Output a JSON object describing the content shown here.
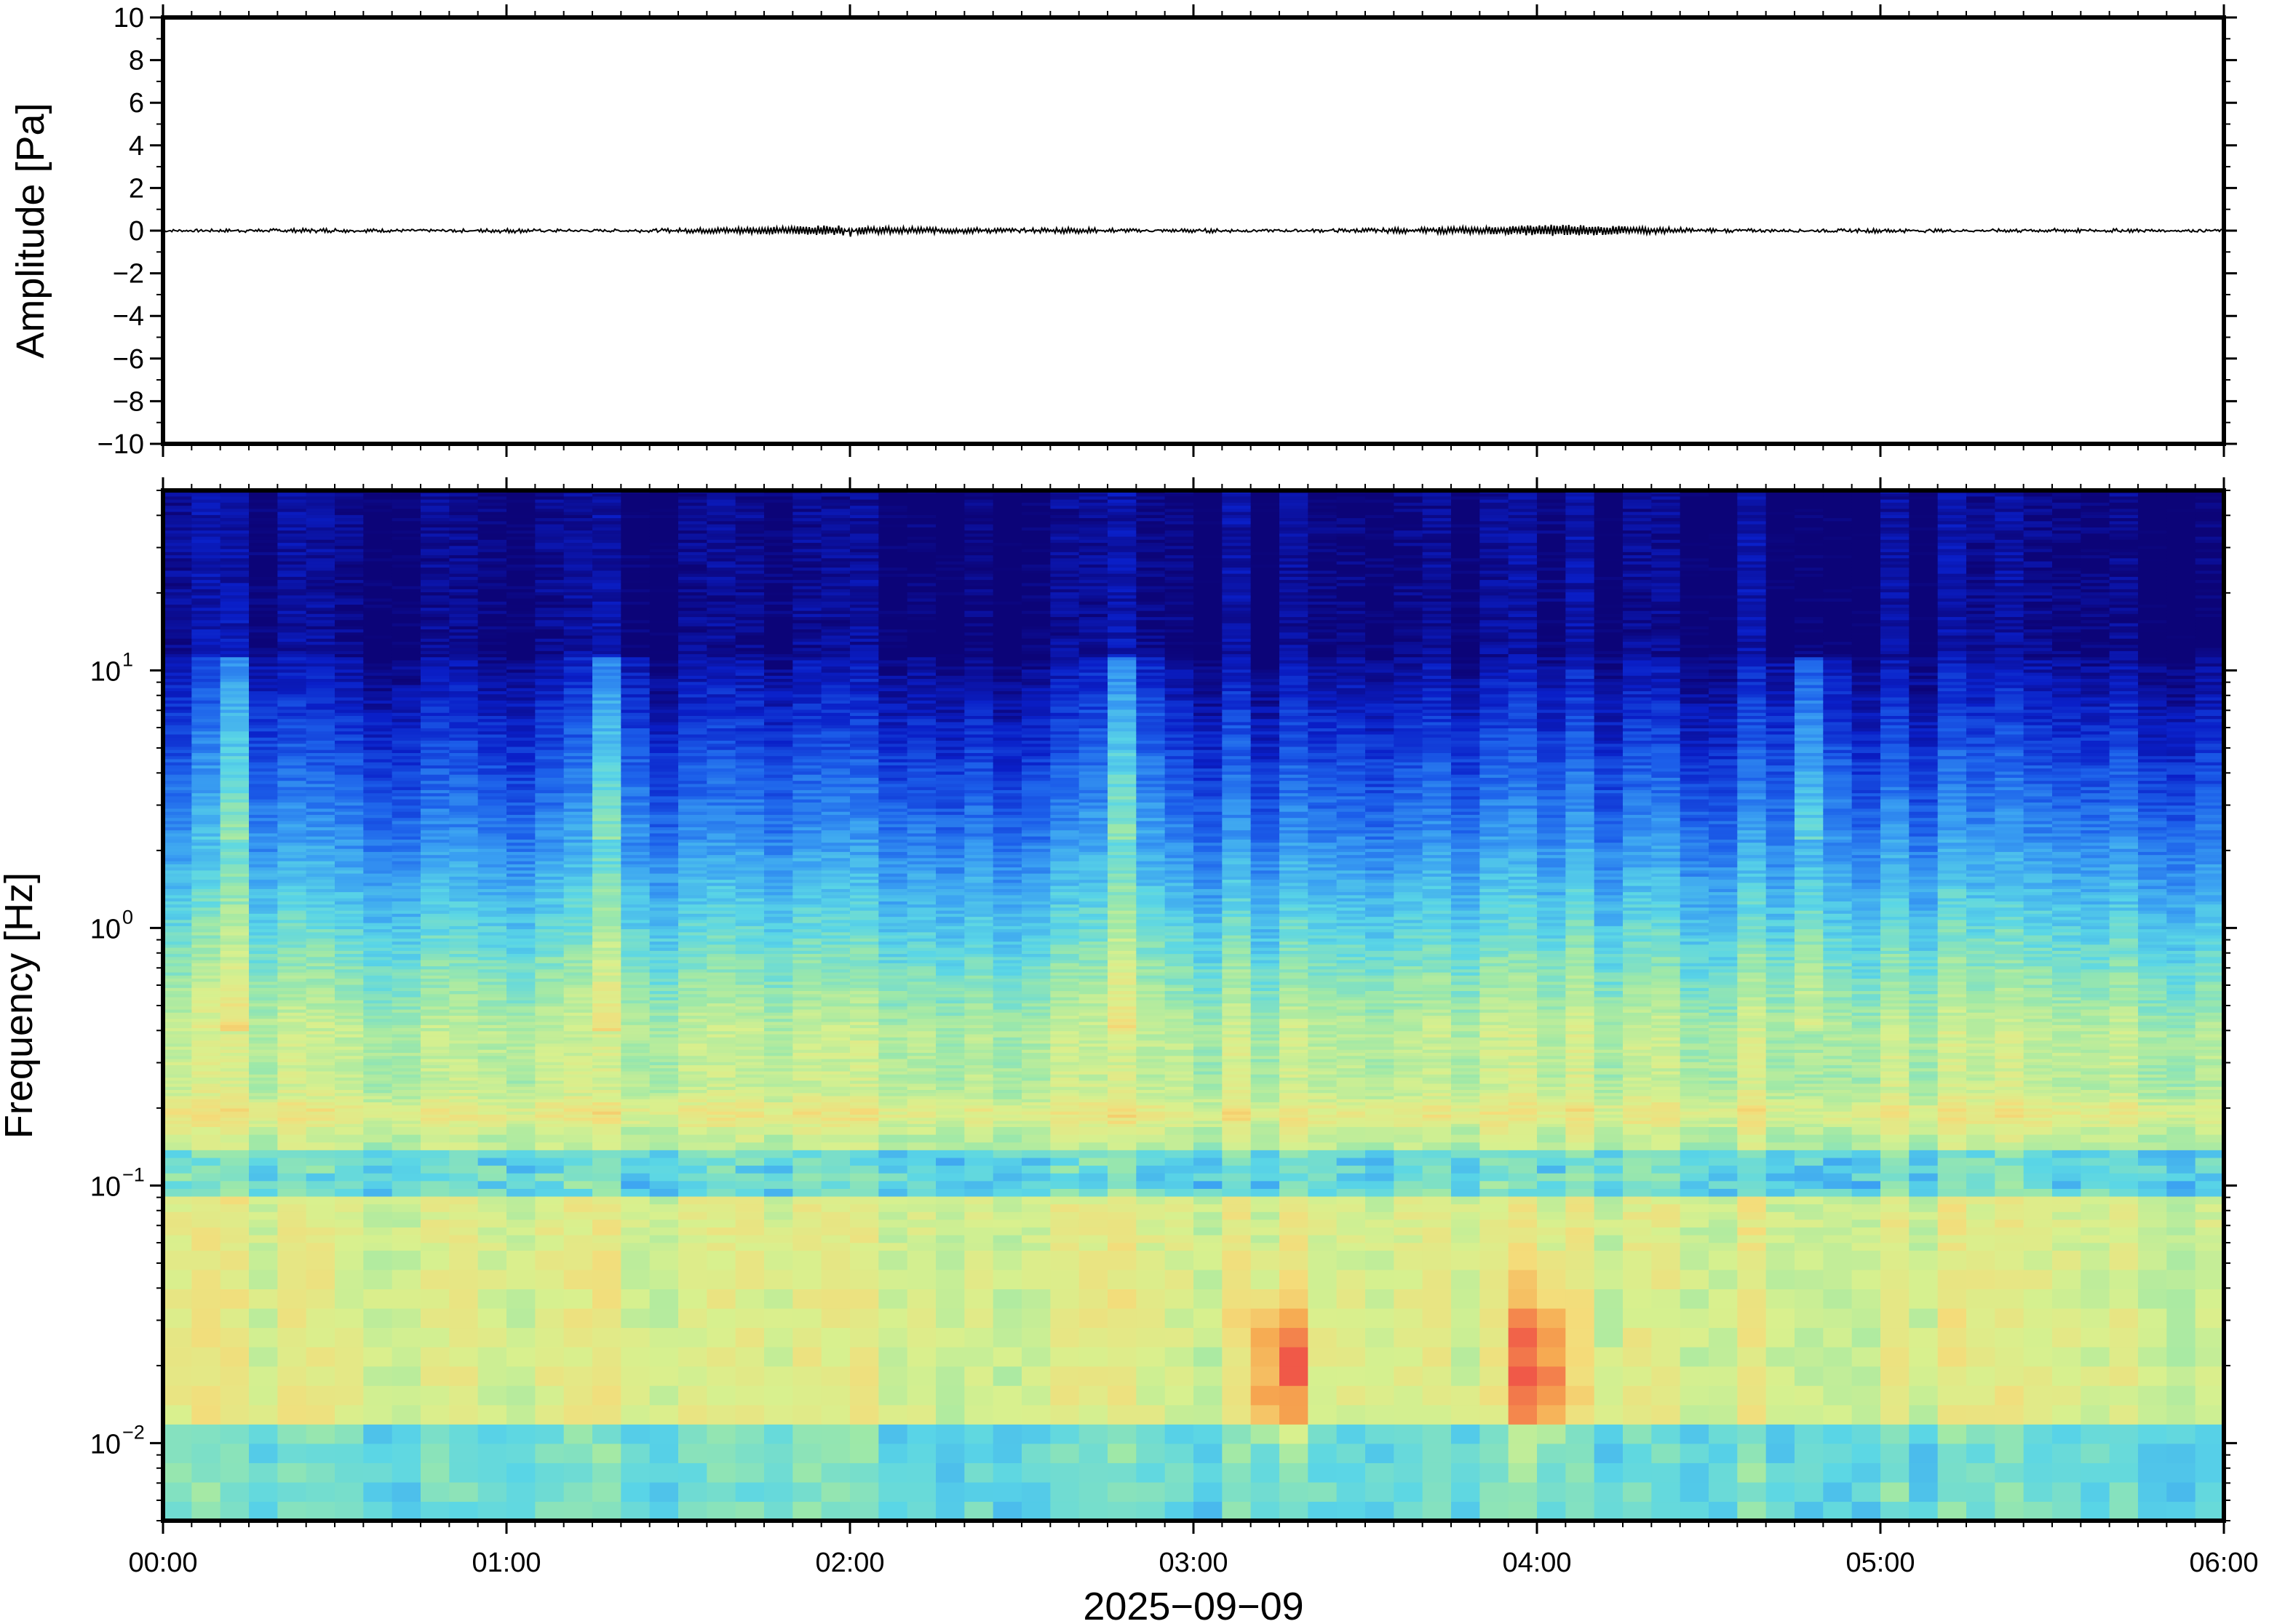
{
  "chart_data": [
    {
      "type": "line",
      "ylabel": "Amplitude [Pa]",
      "ylim": [
        -10,
        10
      ],
      "ytick_labels": [
        "10",
        "8",
        "6",
        "4",
        "2",
        "0",
        "−2",
        "−4",
        "−6",
        "−8",
        "−10"
      ],
      "yticks": [
        10,
        8,
        6,
        4,
        2,
        0,
        -2,
        -4,
        -6,
        -8,
        -10
      ],
      "xlim_hours": [
        0,
        6
      ],
      "grid": false,
      "series": [
        {
          "x_hours": [
            0,
            0.5,
            1.0,
            1.5,
            1.98,
            2.0,
            2.02,
            2.5,
            2.65,
            3.0,
            3.5,
            3.9,
            4.05,
            4.5,
            5.0,
            5.5,
            6.0
          ],
          "y_pa": [
            0,
            0.05,
            -0.05,
            0.05,
            0.2,
            -0.25,
            0.15,
            0.05,
            0.1,
            -0.05,
            0.05,
            0.15,
            0.25,
            0.05,
            -0.05,
            0.05,
            0
          ]
        }
      ],
      "line_color": "#000000"
    },
    {
      "type": "heatmap",
      "ylabel": "Frequency [Hz]",
      "xlabel": "2025−09−09",
      "y_scale": "log",
      "ylim_hz": [
        0.005,
        50
      ],
      "yticks": [
        {
          "value": 10,
          "base": "10",
          "exp": "1"
        },
        {
          "value": 1,
          "base": "10",
          "exp": "0"
        },
        {
          "value": 0.1,
          "base": "10",
          "exp": "−1"
        },
        {
          "value": 0.01,
          "base": "10",
          "exp": "−2"
        }
      ],
      "xticks": [
        {
          "hours": 0,
          "label": "00:00"
        },
        {
          "hours": 1,
          "label": "01:00"
        },
        {
          "hours": 2,
          "label": "02:00"
        },
        {
          "hours": 3,
          "label": "03:00"
        },
        {
          "hours": 4,
          "label": "04:00"
        },
        {
          "hours": 5,
          "label": "05:00"
        },
        {
          "hours": 6,
          "label": "06:00"
        }
      ],
      "colormap": [
        "#0c0478",
        "#0a1fc8",
        "#1c5fea",
        "#3aa0f2",
        "#5ad6e6",
        "#9ee8a8",
        "#d8f08e",
        "#f4dc7a",
        "#f6a850",
        "#f05848"
      ],
      "upper_band_hours": [
        0.2,
        1.3,
        2.8,
        4.8
      ],
      "hot_spots_hours": [
        3.25,
        4.0
      ]
    }
  ]
}
